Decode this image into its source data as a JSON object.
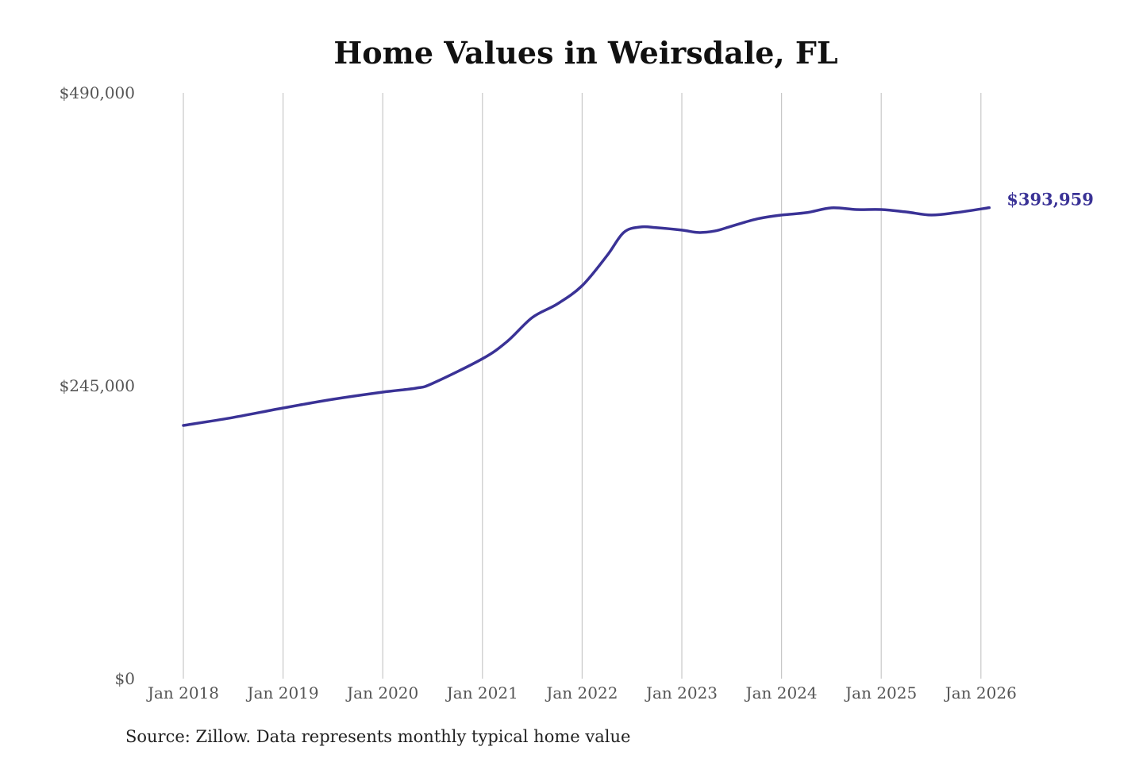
{
  "chart_data": {
    "type": "line",
    "title": "Home Values in Weirsdale, FL",
    "xlabel": "",
    "ylabel": "",
    "ylim": [
      0,
      490000
    ],
    "xlim": [
      "2018-01",
      "2026-02"
    ],
    "grid": "vertical",
    "y_ticks": [
      "$0",
      "$245,000",
      "$490,000"
    ],
    "y_tick_values": [
      0,
      245000,
      490000
    ],
    "x_ticks": [
      "Jan 2018",
      "Jan 2019",
      "Jan 2020",
      "Jan 2021",
      "Jan 2022",
      "Jan 2023",
      "Jan 2024",
      "Jan 2025",
      "Jan 2026"
    ],
    "x_tick_values": [
      "2018-01",
      "2019-01",
      "2020-01",
      "2021-01",
      "2022-01",
      "2023-01",
      "2024-01",
      "2025-01",
      "2026-01"
    ],
    "line_color": "#3a3296",
    "series": [
      {
        "x": [
          "2018-01",
          "2018-07",
          "2019-01",
          "2019-07",
          "2020-01",
          "2020-05",
          "2020-07",
          "2021-01",
          "2021-04",
          "2021-07",
          "2021-10",
          "2022-01",
          "2022-04",
          "2022-06",
          "2022-08",
          "2022-10",
          "2023-01",
          "2023-03",
          "2023-05",
          "2023-07",
          "2023-10",
          "2024-01",
          "2024-04",
          "2024-07",
          "2024-10",
          "2025-01",
          "2025-04",
          "2025-07",
          "2025-10",
          "2026-02"
        ],
        "y": [
          211800,
          218500,
          226400,
          233700,
          239700,
          243000,
          247000,
          267600,
          282200,
          302100,
          313400,
          328700,
          353900,
          373200,
          377800,
          377200,
          375200,
          373200,
          374500,
          378500,
          384500,
          387800,
          389800,
          393800,
          392400,
          392400,
          390400,
          387800,
          389800,
          393959
        ]
      }
    ],
    "end_label": "$393,959"
  },
  "footer": {
    "source": "Source: Zillow. Data represents monthly typical home value"
  }
}
